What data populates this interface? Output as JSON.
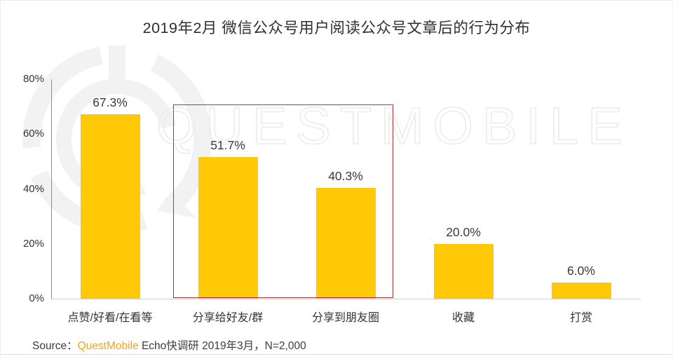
{
  "title": "2019年2月 微信公众号用户阅读公众号文章后的行为分布",
  "watermark": {
    "text": "QUESTMOBILE",
    "logo": "questmobile-logo"
  },
  "colors": {
    "bar": "#FFC907",
    "highlight_box": "#B03434",
    "brand_orange": "#F5A31C",
    "axis": "#8C8C8C",
    "baseline": "#D2D2D2",
    "text": "#333333",
    "watermark": "#ECECEC"
  },
  "chart_data": {
    "type": "bar",
    "title": "2019年2月 微信公众号用户阅读公众号文章后的行为分布",
    "categories": [
      "点赞/好看/在看等",
      "分享给好友/群",
      "分享到朋友圈",
      "收藏",
      "打赏"
    ],
    "values": [
      67.3,
      51.7,
      40.3,
      20.0,
      6.0
    ],
    "value_labels": [
      "67.3%",
      "51.7%",
      "40.3%",
      "20.0%",
      "6.0%"
    ],
    "xlabel": "",
    "ylabel": "",
    "ylim": [
      0,
      80
    ],
    "yticks": [
      80,
      60,
      40,
      20,
      0
    ],
    "ytick_labels": [
      "80%",
      "60%",
      "40%",
      "20%",
      "0%"
    ],
    "grid": false,
    "legend": "none",
    "highlight": {
      "type": "box",
      "categories": [
        "分享给好友/群",
        "分享到朋友圈"
      ],
      "color": "#B03434"
    }
  },
  "source": {
    "prefix": "Source：",
    "brand": "QuestMobile",
    "suffix": " Echo快调研 2019年3月，N=2,000"
  }
}
